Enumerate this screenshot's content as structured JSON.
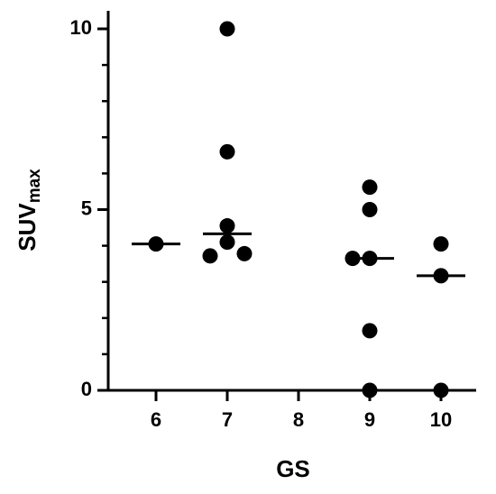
{
  "chart_data": {
    "type": "dot-median",
    "x_label": "GS",
    "y_label": "SUV",
    "y_label_sub": "max",
    "categories": [
      "6",
      "7",
      "8",
      "9",
      "10"
    ],
    "points": [
      [
        4.05
      ],
      [
        10,
        6.6,
        4.55,
        4.1,
        3.72,
        3.78
      ],
      [],
      [
        5.62,
        5.0,
        3.65,
        3.65,
        1.65,
        0
      ],
      [
        4.05,
        3.17,
        0
      ]
    ],
    "medians": [
      4.05,
      4.33,
      null,
      3.65,
      3.17
    ],
    "color": "#000000",
    "ylim": [
      0,
      10.5
    ],
    "yticks": [
      0,
      5,
      10
    ],
    "yminorticks": [
      1,
      2,
      3,
      4,
      6,
      7,
      8,
      9
    ]
  }
}
